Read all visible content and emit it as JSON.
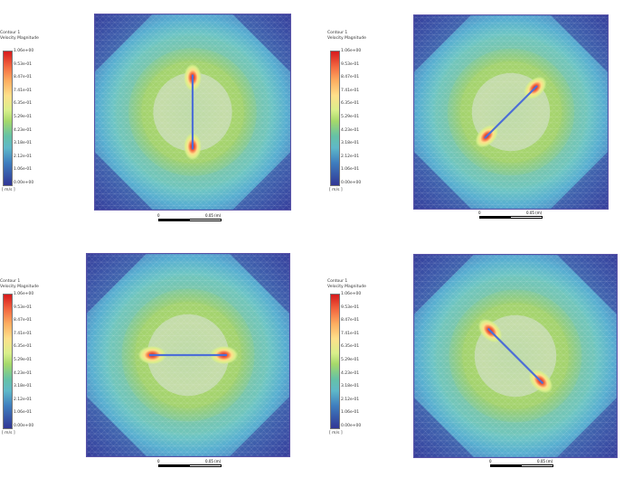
{
  "legend": {
    "title_line1": "Contour 1",
    "title_line2": "Velocity Magnitude",
    "ticks": [
      "1.06e+00",
      "9.53e-01",
      "8.47e-01",
      "7.41e-01",
      "6.35e-01",
      "5.29e-01",
      "4.23e-01",
      "3.18e-01",
      "2.12e-01",
      "1.06e-01",
      "0.00e+00"
    ],
    "unit": "[ m/s ]"
  },
  "scale": {
    "start": "0",
    "end": "0.05 (m)"
  },
  "panels": [
    {
      "id": "top-left",
      "blade_angle": 90
    },
    {
      "id": "top-right",
      "blade_angle": 45
    },
    {
      "id": "bottom-left",
      "blade_angle": 0
    },
    {
      "id": "bottom-right",
      "blade_angle": -45
    }
  ],
  "colors": {
    "low": "#313695",
    "high": "#d7191c",
    "mesh": "#7b74c8"
  }
}
